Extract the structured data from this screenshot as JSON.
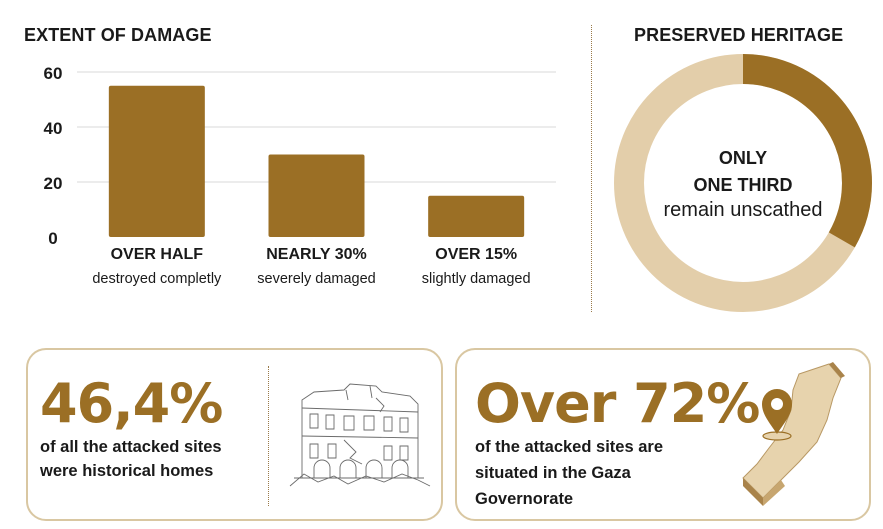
{
  "colors": {
    "primary": "#9b6f25",
    "light": "#e3ceaa",
    "text": "#1a1a1a",
    "border": "#d9c7a2"
  },
  "bar_chart": {
    "title": "EXTENT OF DAMAGE"
  },
  "donut_chart": {
    "title": "PRESERVED  HERITAGE",
    "center_line1": "ONLY",
    "center_line2": "ONE THIRD",
    "center_line3": "remain unscathed"
  },
  "chart_data": [
    {
      "type": "bar",
      "title": "EXTENT OF DAMAGE",
      "categories": [
        "OVER HALF",
        "NEARLY 30%",
        "OVER 15%"
      ],
      "sublabels": [
        "destroyed completly",
        "severely damaged",
        "slightly damaged"
      ],
      "values": [
        55,
        30,
        15
      ],
      "ylim": [
        0,
        60
      ],
      "yticks": [
        0,
        20,
        40,
        60
      ],
      "grid": true,
      "xlabel": "",
      "ylabel": ""
    },
    {
      "type": "pie",
      "title": "PRESERVED  HERITAGE",
      "labels": [
        "remain unscathed",
        "damaged"
      ],
      "values": [
        0.333,
        0.667
      ],
      "donut": true
    }
  ],
  "stat_left": {
    "value": "46,4%",
    "line1": "of all the attacked sites",
    "line2": "were historical homes",
    "image": "damaged-building-sketch"
  },
  "stat_right": {
    "value": "Over 72%",
    "line1": "of the attacked sites are",
    "line2": "situated in the Gaza",
    "line3": "Governorate",
    "icon": "map-pin-icon"
  }
}
